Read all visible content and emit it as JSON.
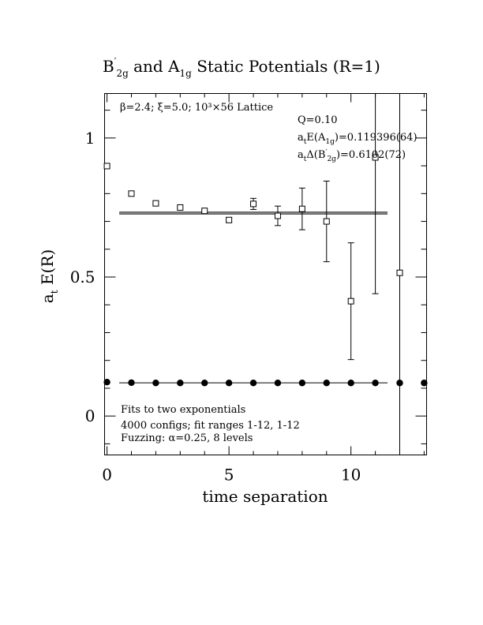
{
  "chart_data": {
    "type": "scatter",
    "title": {
      "main": "B",
      "sub1": "2g",
      "mid": " and A",
      "sub2": "1g",
      "rest": " Static Potentials (R=1)"
    },
    "xlabel": "time separation",
    "ylabel": {
      "main": "a",
      "sub": "t",
      "rest": " E(R)"
    },
    "xlim": [
      -0.1,
      13.1
    ],
    "ylim": [
      -0.14,
      1.16
    ],
    "x_ticks": [
      0,
      5,
      10
    ],
    "y_ticks": [
      0,
      0.5,
      1
    ],
    "x_tick_labels": [
      "0",
      "5",
      "10"
    ],
    "y_tick_labels": [
      "0",
      "0.5",
      "1"
    ],
    "annotations": {
      "params": "β=2.4; ξ=5.0; 10³×56 Lattice",
      "q": "Q=0.10",
      "a1g": {
        "pre": "a",
        "sub_t": "t",
        "mid": "E(A",
        "sub": "1g",
        "rest": ")=0.119396(64)"
      },
      "b2g": {
        "pre": "a",
        "sub_t": "t",
        "mid": "Δ(B",
        "sub": "2g",
        "rest": ")=0.6102(72)"
      },
      "fit1": "Fits to two exponentials",
      "fit2": "4000 configs; fit ranges 1-12, 1-12",
      "fit3": "Fuzzing: α=0.25, 8 levels"
    },
    "series": [
      {
        "marker": "open-square",
        "points": [
          {
            "x": 0,
            "y": 0.899,
            "err": 0.004
          },
          {
            "x": 1,
            "y": 0.8,
            "err": 0.004
          },
          {
            "x": 2,
            "y": 0.765,
            "err": 0.005
          },
          {
            "x": 3,
            "y": 0.75,
            "err": 0.006
          },
          {
            "x": 4,
            "y": 0.738,
            "err": 0.007
          },
          {
            "x": 5,
            "y": 0.705,
            "err": 0.009
          },
          {
            "x": 6,
            "y": 0.763,
            "err": 0.02
          },
          {
            "x": 7,
            "y": 0.72,
            "err": 0.035
          },
          {
            "x": 8,
            "y": 0.745,
            "err": 0.075
          },
          {
            "x": 9,
            "y": 0.7,
            "err": 0.145
          },
          {
            "x": 10,
            "y": 0.413,
            "err": 0.21
          },
          {
            "x": 11,
            "y": 0.93,
            "err": 0.49
          },
          {
            "x": 12,
            "y": 0.515,
            "err": 0.8
          }
        ],
        "fit_band": {
          "x": [
            0.5,
            11.5
          ],
          "y": [
            0.7265,
            0.7335
          ]
        }
      },
      {
        "marker": "filled-circle",
        "points": [
          {
            "x": 0,
            "y": 0.122
          },
          {
            "x": 1,
            "y": 0.12
          },
          {
            "x": 2,
            "y": 0.119
          },
          {
            "x": 3,
            "y": 0.119
          },
          {
            "x": 4,
            "y": 0.119
          },
          {
            "x": 5,
            "y": 0.119
          },
          {
            "x": 6,
            "y": 0.119
          },
          {
            "x": 7,
            "y": 0.119
          },
          {
            "x": 8,
            "y": 0.119
          },
          {
            "x": 9,
            "y": 0.119
          },
          {
            "x": 10,
            "y": 0.119
          },
          {
            "x": 11,
            "y": 0.119
          },
          {
            "x": 12,
            "y": 0.119
          },
          {
            "x": 13,
            "y": 0.119
          }
        ],
        "fit_line": {
          "x": [
            0.5,
            11.5
          ],
          "y": 0.1194
        }
      }
    ]
  }
}
